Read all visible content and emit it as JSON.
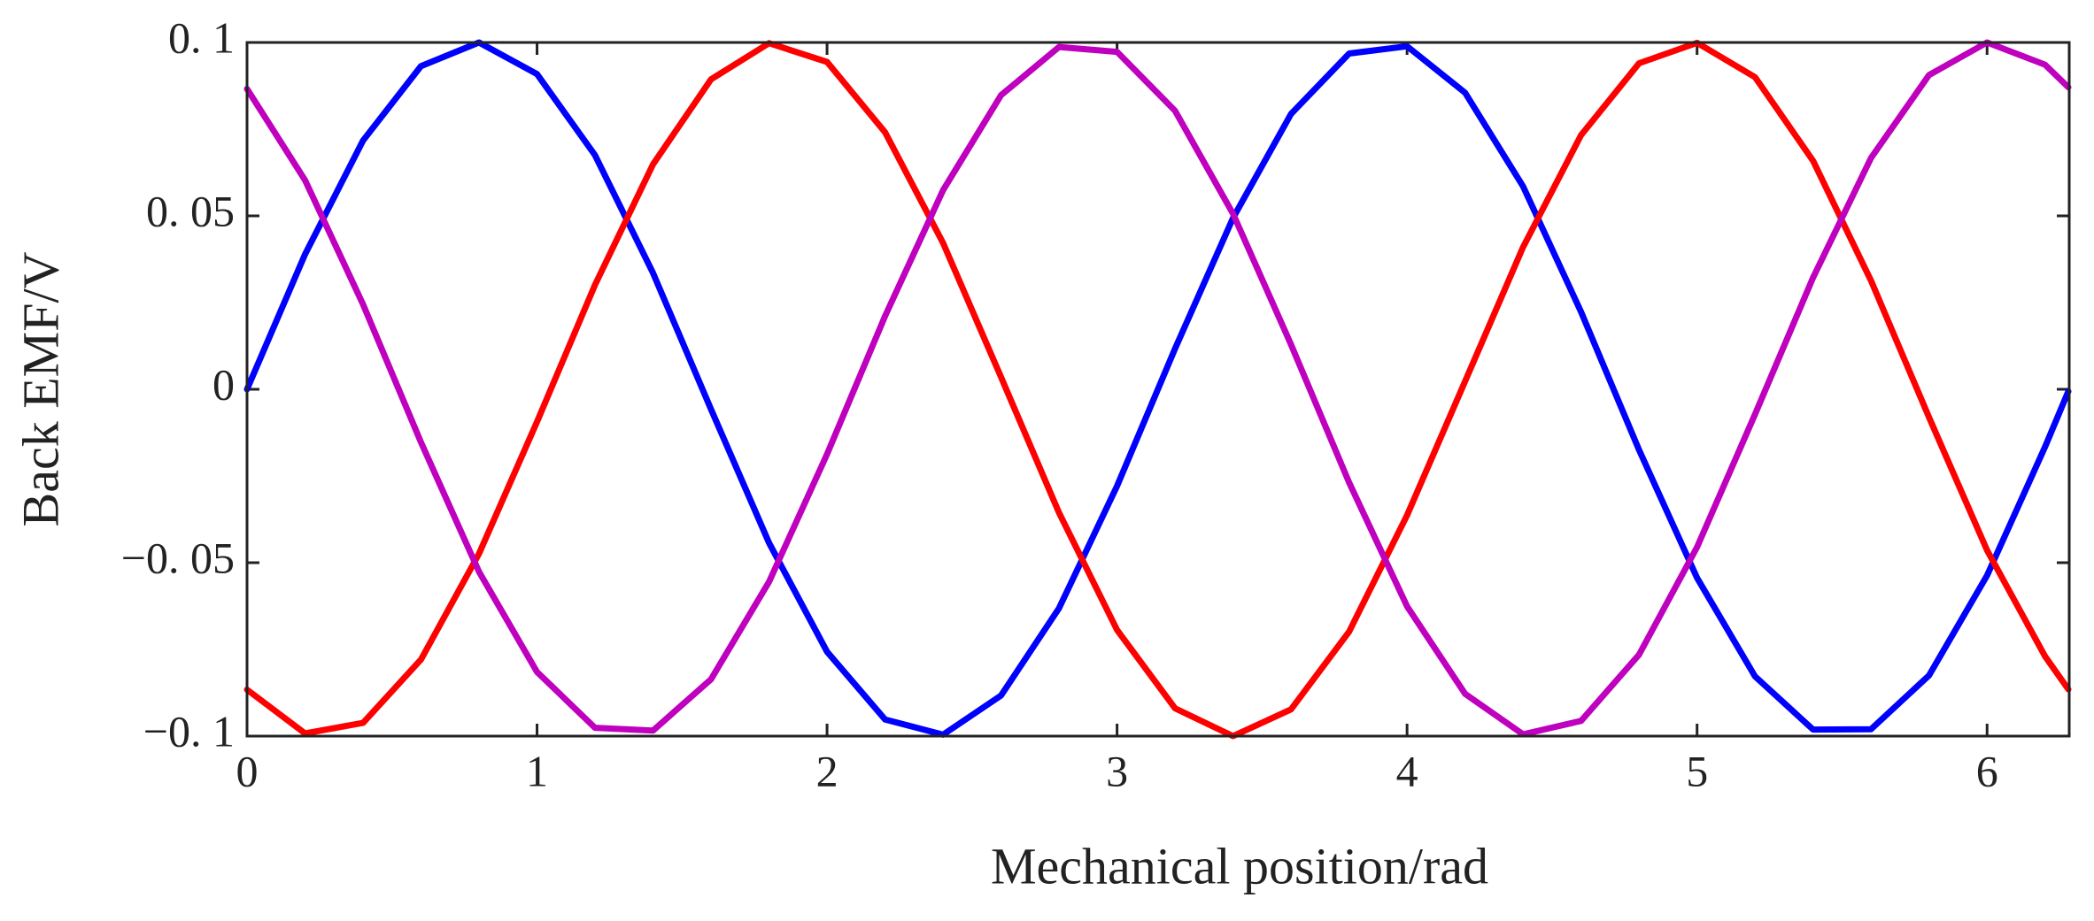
{
  "chart_data": {
    "type": "line",
    "xlabel": "Mechanical position/rad",
    "ylabel": "Back EMF/V",
    "x": [
      0,
      0.2,
      0.4,
      0.6,
      0.8,
      1.0,
      1.2,
      1.4,
      1.6,
      1.8,
      2.0,
      2.2,
      2.4,
      2.6,
      2.8,
      3.0,
      3.2,
      3.4,
      3.6,
      3.8,
      4.0,
      4.2,
      4.4,
      4.6,
      4.8,
      5.0,
      5.2,
      5.4,
      5.6,
      5.8,
      6.0,
      6.2,
      6.28
    ],
    "series": [
      {
        "color": "#0000ff",
        "values": [
          0,
          0.0389,
          0.0717,
          0.0932,
          0.1,
          0.0909,
          0.0675,
          0.0335,
          -0.0058,
          -0.0443,
          -0.0757,
          -0.0952,
          -0.0996,
          -0.0883,
          -0.0631,
          -0.0279,
          0.0117,
          0.0494,
          0.0794,
          0.0968,
          0.0989,
          0.0855,
          0.0585,
          0.0223,
          -0.0175,
          -0.0544,
          -0.0828,
          -0.0981,
          -0.098,
          -0.0825,
          -0.0537,
          -0.0166,
          -0.0006
        ]
      },
      {
        "color": "#ff0000",
        "values": [
          -0.0866,
          -0.0992,
          -0.0962,
          -0.0779,
          -0.0474,
          -0.0094,
          0.0301,
          0.0649,
          0.0894,
          0.0998,
          0.0944,
          0.0741,
          0.0422,
          0.0035,
          -0.0356,
          -0.0694,
          -0.092,
          -0.1,
          -0.0923,
          -0.0699,
          -0.0363,
          0.0023,
          0.041,
          0.0733,
          0.094,
          0.0999,
          0.09,
          0.0659,
          0.0313,
          -0.0081,
          -0.0464,
          -0.077,
          -0.0865
        ]
      },
      {
        "color": "#bf00bf",
        "values": [
          0.0866,
          0.0603,
          0.0245,
          -0.0153,
          -0.0526,
          -0.0815,
          -0.0976,
          -0.0984,
          -0.0836,
          -0.0555,
          -0.0187,
          0.0211,
          0.0574,
          0.0848,
          0.0987,
          0.0973,
          0.0803,
          0.0506,
          0.0129,
          -0.0269,
          -0.0626,
          -0.0878,
          -0.0995,
          -0.0956,
          -0.0765,
          -0.0455,
          -0.0072,
          0.0322,
          0.0667,
          0.0906,
          0.1,
          0.0936,
          0.0871
        ]
      }
    ],
    "xlim": [
      0,
      6.2832
    ],
    "ylim": [
      -0.1,
      0.1
    ],
    "xticks": [
      0,
      1,
      2,
      3,
      4,
      5,
      6
    ],
    "yticks": [
      {
        "value": -0.1,
        "label": "−0. 1"
      },
      {
        "value": -0.05,
        "label": "−0. 05"
      },
      {
        "value": 0,
        "label": "0"
      },
      {
        "value": 0.05,
        "label": "0. 05"
      },
      {
        "value": 0.1,
        "label": "0. 1"
      }
    ]
  }
}
